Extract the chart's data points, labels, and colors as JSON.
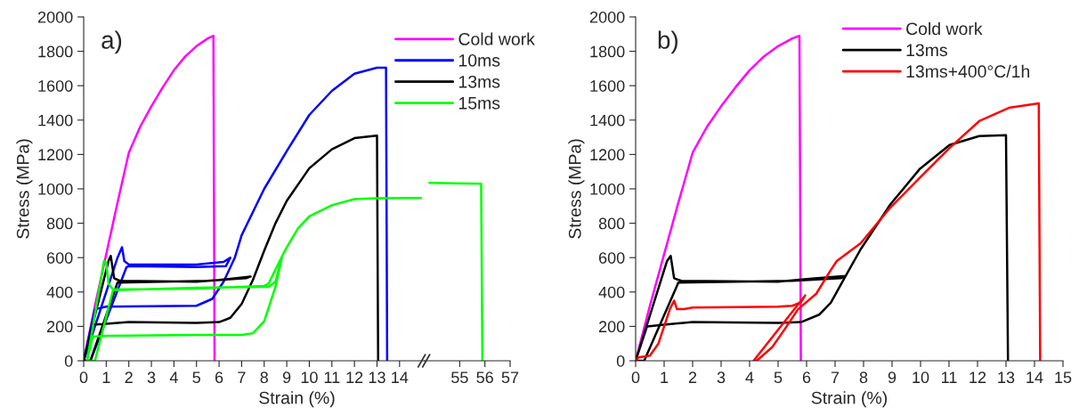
{
  "chart_data": [
    {
      "type": "line",
      "xlabel": "Strain (%)",
      "ylabel": "Stress (MPa)",
      "annotations": [
        "a)"
      ],
      "xlim": [
        0,
        15.1
      ],
      "xticks": [
        0,
        1,
        2,
        3,
        4,
        5,
        6,
        7,
        8,
        9,
        10,
        11,
        12,
        13,
        14
      ],
      "ylim": [
        0,
        2000
      ],
      "yticks": [
        0,
        200,
        400,
        600,
        800,
        1000,
        1200,
        1400,
        1600,
        1800,
        2000
      ],
      "grid": false,
      "legend": "top right",
      "marker": "none",
      "line_style": "solid",
      "series": [
        {
          "name": "Cold work",
          "color": "#ff00ff",
          "x": [
            0,
            0.5,
            1,
            1.5,
            2,
            2.5,
            3,
            3.5,
            4,
            4.5,
            5,
            5.5,
            5.75,
            5.8
          ],
          "values": [
            0,
            320,
            620,
            920,
            1210,
            1360,
            1480,
            1590,
            1690,
            1770,
            1830,
            1875,
            1890,
            0
          ]
        },
        {
          "name": "10ms",
          "color": "#0000ff",
          "x": [
            0,
            1.5,
            1.7,
            1.8,
            2,
            5,
            6.2,
            6.5,
            6.3,
            5,
            2,
            1.9,
            0.3,
            0,
            0.5,
            1,
            5,
            5.7,
            6.2,
            6.7,
            7,
            8,
            9,
            10,
            11,
            12,
            13,
            13.4,
            13.45
          ],
          "values": [
            0,
            600,
            660,
            580,
            560,
            560,
            575,
            600,
            550,
            545,
            550,
            545,
            0,
            0,
            300,
            315,
            320,
            360,
            460,
            600,
            730,
            1000,
            1220,
            1430,
            1570,
            1670,
            1705,
            1705,
            0
          ]
        },
        {
          "name": "13ms",
          "color": "#000000",
          "x": [
            0,
            1.1,
            1.2,
            1.35,
            1.6,
            5,
            6,
            7.4,
            7.2,
            5.5,
            1.5,
            0.3,
            0,
            0.4,
            1,
            2,
            5,
            6,
            6.5,
            7,
            7.5,
            8,
            8.5,
            9,
            10,
            11,
            12,
            13,
            13.05
          ],
          "values": [
            0,
            580,
            610,
            480,
            465,
            460,
            470,
            490,
            480,
            465,
            455,
            0,
            0,
            210,
            215,
            225,
            220,
            225,
            250,
            330,
            470,
            640,
            800,
            930,
            1120,
            1230,
            1295,
            1310,
            0
          ]
        },
        {
          "name": "15ms",
          "color": "#00ff00",
          "x": [
            0.15,
            0.9,
            1,
            1.1,
            1.3,
            5,
            8,
            8.2,
            8.8,
            8.5,
            8.2,
            5,
            1.3,
            0.5,
            0.15,
            0.4,
            1,
            5,
            7,
            7.5,
            8,
            8.5,
            8.8,
            9,
            9.5,
            10,
            11,
            12,
            13,
            14.95
          ],
          "values": [
            0,
            580,
            570,
            450,
            415,
            420,
            435,
            450,
            610,
            460,
            430,
            425,
            410,
            0,
            0,
            140,
            145,
            150,
            150,
            160,
            230,
            430,
            610,
            660,
            770,
            840,
            905,
            940,
            945,
            947
          ]
        }
      ]
    },
    {
      "type": "line",
      "xlim": [
        53.6,
        57
      ],
      "xticks": [
        55,
        56,
        57
      ],
      "ylim": [
        0,
        2000
      ],
      "tick_labels": "x",
      "grid": false,
      "marker": "none",
      "line_style": "solid",
      "series": [
        {
          "color": "#00ff00",
          "x": [
            53.8,
            55.85,
            55.9
          ],
          "values": [
            1035,
            1030,
            0
          ]
        }
      ]
    },
    {
      "type": "line",
      "xlabel": "Strain (%)",
      "ylabel": "Stress (MPa)",
      "annotations": [
        "b)"
      ],
      "xlim": [
        0,
        15
      ],
      "xticks": [
        0,
        1,
        2,
        3,
        4,
        5,
        6,
        7,
        8,
        9,
        10,
        11,
        12,
        13,
        14,
        15
      ],
      "ylim": [
        0,
        2000
      ],
      "yticks": [
        0,
        200,
        400,
        600,
        800,
        1000,
        1200,
        1400,
        1600,
        1800,
        2000
      ],
      "grid": false,
      "legend": "top right",
      "marker": "none",
      "line_style": "solid",
      "series": [
        {
          "name": "Cold work",
          "color": "#ff00ff",
          "x": [
            0,
            0.5,
            1,
            1.5,
            2,
            2.5,
            3,
            3.5,
            4,
            4.5,
            5,
            5.5,
            5.75,
            5.8
          ],
          "values": [
            0,
            320,
            620,
            920,
            1210,
            1360,
            1480,
            1590,
            1690,
            1770,
            1830,
            1875,
            1890,
            0
          ]
        },
        {
          "name": "13ms",
          "color": "#000000",
          "x": [
            0,
            1.1,
            1.23,
            1.35,
            1.6,
            5,
            6,
            7.37,
            7.2,
            5.5,
            1.5,
            0.3,
            0,
            0.4,
            1,
            2,
            5,
            5.81,
            6.44,
            6.85,
            7.37,
            7.9,
            8.94,
            9.98,
            11.02,
            12.06,
            13,
            13.07
          ],
          "values": [
            0,
            580,
            610,
            480,
            465,
            460,
            476,
            493,
            480,
            465,
            455,
            0,
            0,
            200,
            210,
            225,
            220,
            225,
            268,
            337,
            493,
            649,
            909,
            1117,
            1255,
            1307,
            1312,
            0
          ]
        },
        {
          "name": "13ms+400°C/1h",
          "color": "#ff0000",
          "x": [
            0,
            0.1,
            0.5,
            0.8,
            1.2,
            1.35,
            1.45,
            1.7,
            2,
            5,
            5.5,
            5.8,
            5.95,
            4.14,
            4.25,
            4.8,
            5.3,
            5.7,
            6.34,
            6.85,
            7.06,
            7.9,
            8.94,
            9.98,
            11.02,
            12.06,
            13.1,
            14.15,
            14.2
          ],
          "values": [
            0,
            20,
            30,
            100,
            300,
            350,
            300,
            300,
            310,
            315,
            320,
            340,
            380,
            0,
            0,
            80,
            200,
            300,
            390,
            528,
            580,
            684,
            891,
            1065,
            1238,
            1394,
            1471,
            1497,
            0
          ]
        }
      ]
    }
  ]
}
